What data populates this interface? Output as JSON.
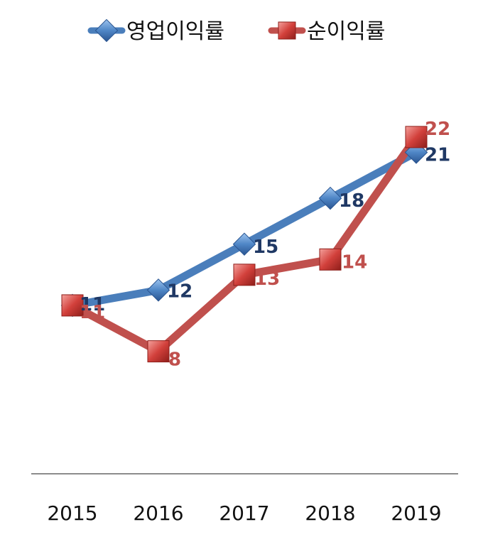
{
  "chart_data": {
    "type": "line",
    "title": "",
    "xlabel": "",
    "ylabel": "",
    "categories": [
      "2015",
      "2016",
      "2017",
      "2018",
      "2019"
    ],
    "ylim": [
      0,
      25
    ],
    "grid": false,
    "legend": "top",
    "series": [
      {
        "name": "영업이익률",
        "values": [
          11,
          12,
          15,
          18,
          21
        ],
        "color": "#4A7EBB",
        "marker": "diamond",
        "label_color": "#1F3864"
      },
      {
        "name": "순이익률",
        "values": [
          11,
          8,
          13,
          14,
          22
        ],
        "color": "#C0504D",
        "marker": "square",
        "label_color": "#C0504D"
      }
    ]
  }
}
